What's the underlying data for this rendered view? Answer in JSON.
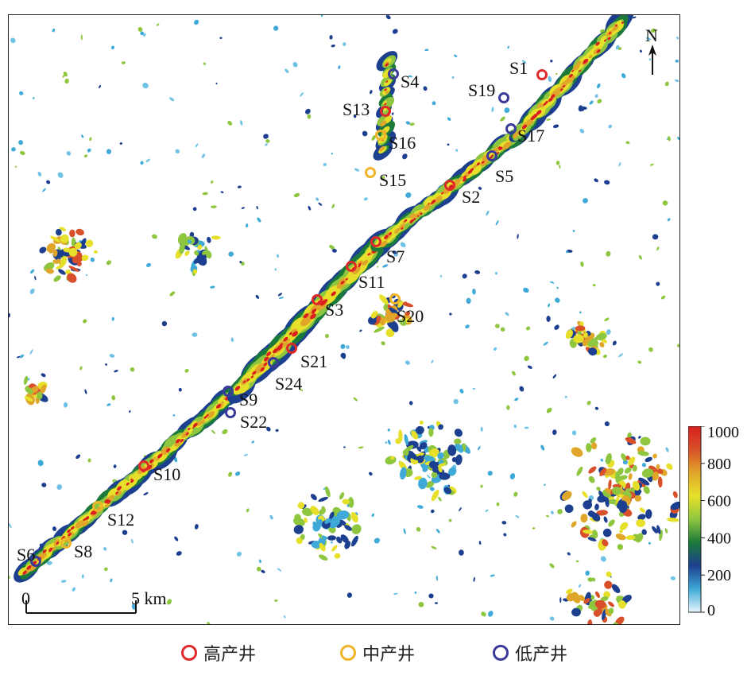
{
  "north_label": "N",
  "scale_bar": {
    "start_label": "0",
    "end_label": "5 km"
  },
  "colorbar": {
    "tick_labels": [
      "1000",
      "800",
      "600",
      "400",
      "200",
      "0"
    ],
    "colors": [
      "#e8f6fb",
      "#3fa9d8",
      "#1d3f8f",
      "#1b7a3a",
      "#8fc63f",
      "#e6e02a",
      "#e0a62a",
      "#d8502a",
      "#d81e1e"
    ]
  },
  "legend": [
    {
      "label": "高产井",
      "color": "#e02a2a"
    },
    {
      "label": "中产井",
      "color": "#f0b428"
    },
    {
      "label": "低产井",
      "color": "#3a3a9a"
    }
  ],
  "wells": [
    {
      "name": "S1",
      "class": "high"
    },
    {
      "name": "S19",
      "class": "low"
    },
    {
      "name": "S17",
      "class": "low"
    },
    {
      "name": "S5",
      "class": "low"
    },
    {
      "name": "S2",
      "class": "high"
    },
    {
      "name": "S4",
      "class": "low"
    },
    {
      "name": "S13",
      "class": "high"
    },
    {
      "name": "S16",
      "class": "medium"
    },
    {
      "name": "S15",
      "class": "medium"
    },
    {
      "name": "S7",
      "class": "high"
    },
    {
      "name": "S11",
      "class": "high"
    },
    {
      "name": "S3",
      "class": "high"
    },
    {
      "name": "S20",
      "class": "medium"
    },
    {
      "name": "S21",
      "class": "high"
    },
    {
      "name": "S24",
      "class": "low"
    },
    {
      "name": "S9",
      "class": "low"
    },
    {
      "name": "S22",
      "class": "low"
    },
    {
      "name": "S10",
      "class": "high"
    },
    {
      "name": "S12",
      "class": "medium"
    },
    {
      "name": "S8",
      "class": "medium"
    },
    {
      "name": "S6",
      "class": "low"
    }
  ]
}
